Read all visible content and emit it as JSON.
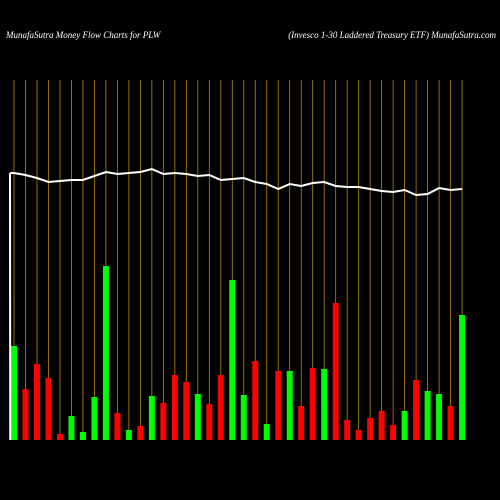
{
  "chart_data": {
    "type": "bar",
    "title": "MunafaSutra  Money  Flow  Charts for PLW",
    "subtitle": "(Invesco  1-30  Laddered Treasury ETF) MunafaSutra.com",
    "categories": [
      null,
      null,
      null,
      null,
      null,
      null,
      null,
      null,
      null,
      null,
      null,
      null,
      null,
      null,
      null,
      null,
      null,
      null,
      null,
      null,
      null,
      null,
      null,
      null,
      null,
      null,
      null,
      null,
      null,
      null,
      null,
      null,
      null,
      null,
      null,
      null,
      null,
      null,
      null,
      null
    ],
    "values": [
      94,
      51,
      76,
      62,
      6,
      24,
      8,
      43,
      174,
      27,
      10,
      14,
      44,
      37,
      65,
      58,
      46,
      36,
      65,
      160,
      45,
      79,
      16,
      69,
      69,
      34,
      72,
      71,
      137,
      20,
      10,
      22,
      29,
      15,
      29,
      60,
      49,
      46,
      34,
      125
    ],
    "colors": [
      "#00ff00",
      "#ff0000",
      "#ff0000",
      "#ff0000",
      "#ff0000",
      "#00ff00",
      "#00ff00",
      "#00ff00",
      "#00ff00",
      "#ff0000",
      "#00ff00",
      "#ff0000",
      "#00ff00",
      "#ff0000",
      "#ff0000",
      "#ff0000",
      "#00ff00",
      "#ff0000",
      "#ff0000",
      "#00ff00",
      "#00ff00",
      "#ff0000",
      "#00ff00",
      "#ff0000",
      "#00ff00",
      "#ff0000",
      "#ff0000",
      "#00ff00",
      "#ff0000",
      "#ff0000",
      "#ff0000",
      "#ff0000",
      "#ff0000",
      "#ff0000",
      "#00ff00",
      "#ff0000",
      "#00ff00",
      "#00ff00",
      "#ff0000",
      "#00ff00"
    ],
    "line": {
      "color": "#ffffff",
      "values": [
        267,
        265,
        262,
        258,
        259,
        260,
        260,
        264,
        268,
        266,
        267,
        268,
        271,
        266,
        267,
        266,
        264,
        265,
        260,
        261,
        262,
        258,
        256,
        251,
        256,
        254,
        257,
        258,
        254,
        253,
        253,
        251,
        249,
        248,
        250,
        245,
        246,
        252,
        250,
        251
      ]
    },
    "grid_color": "#b8860b",
    "ylim": [
      0,
      360
    ]
  }
}
